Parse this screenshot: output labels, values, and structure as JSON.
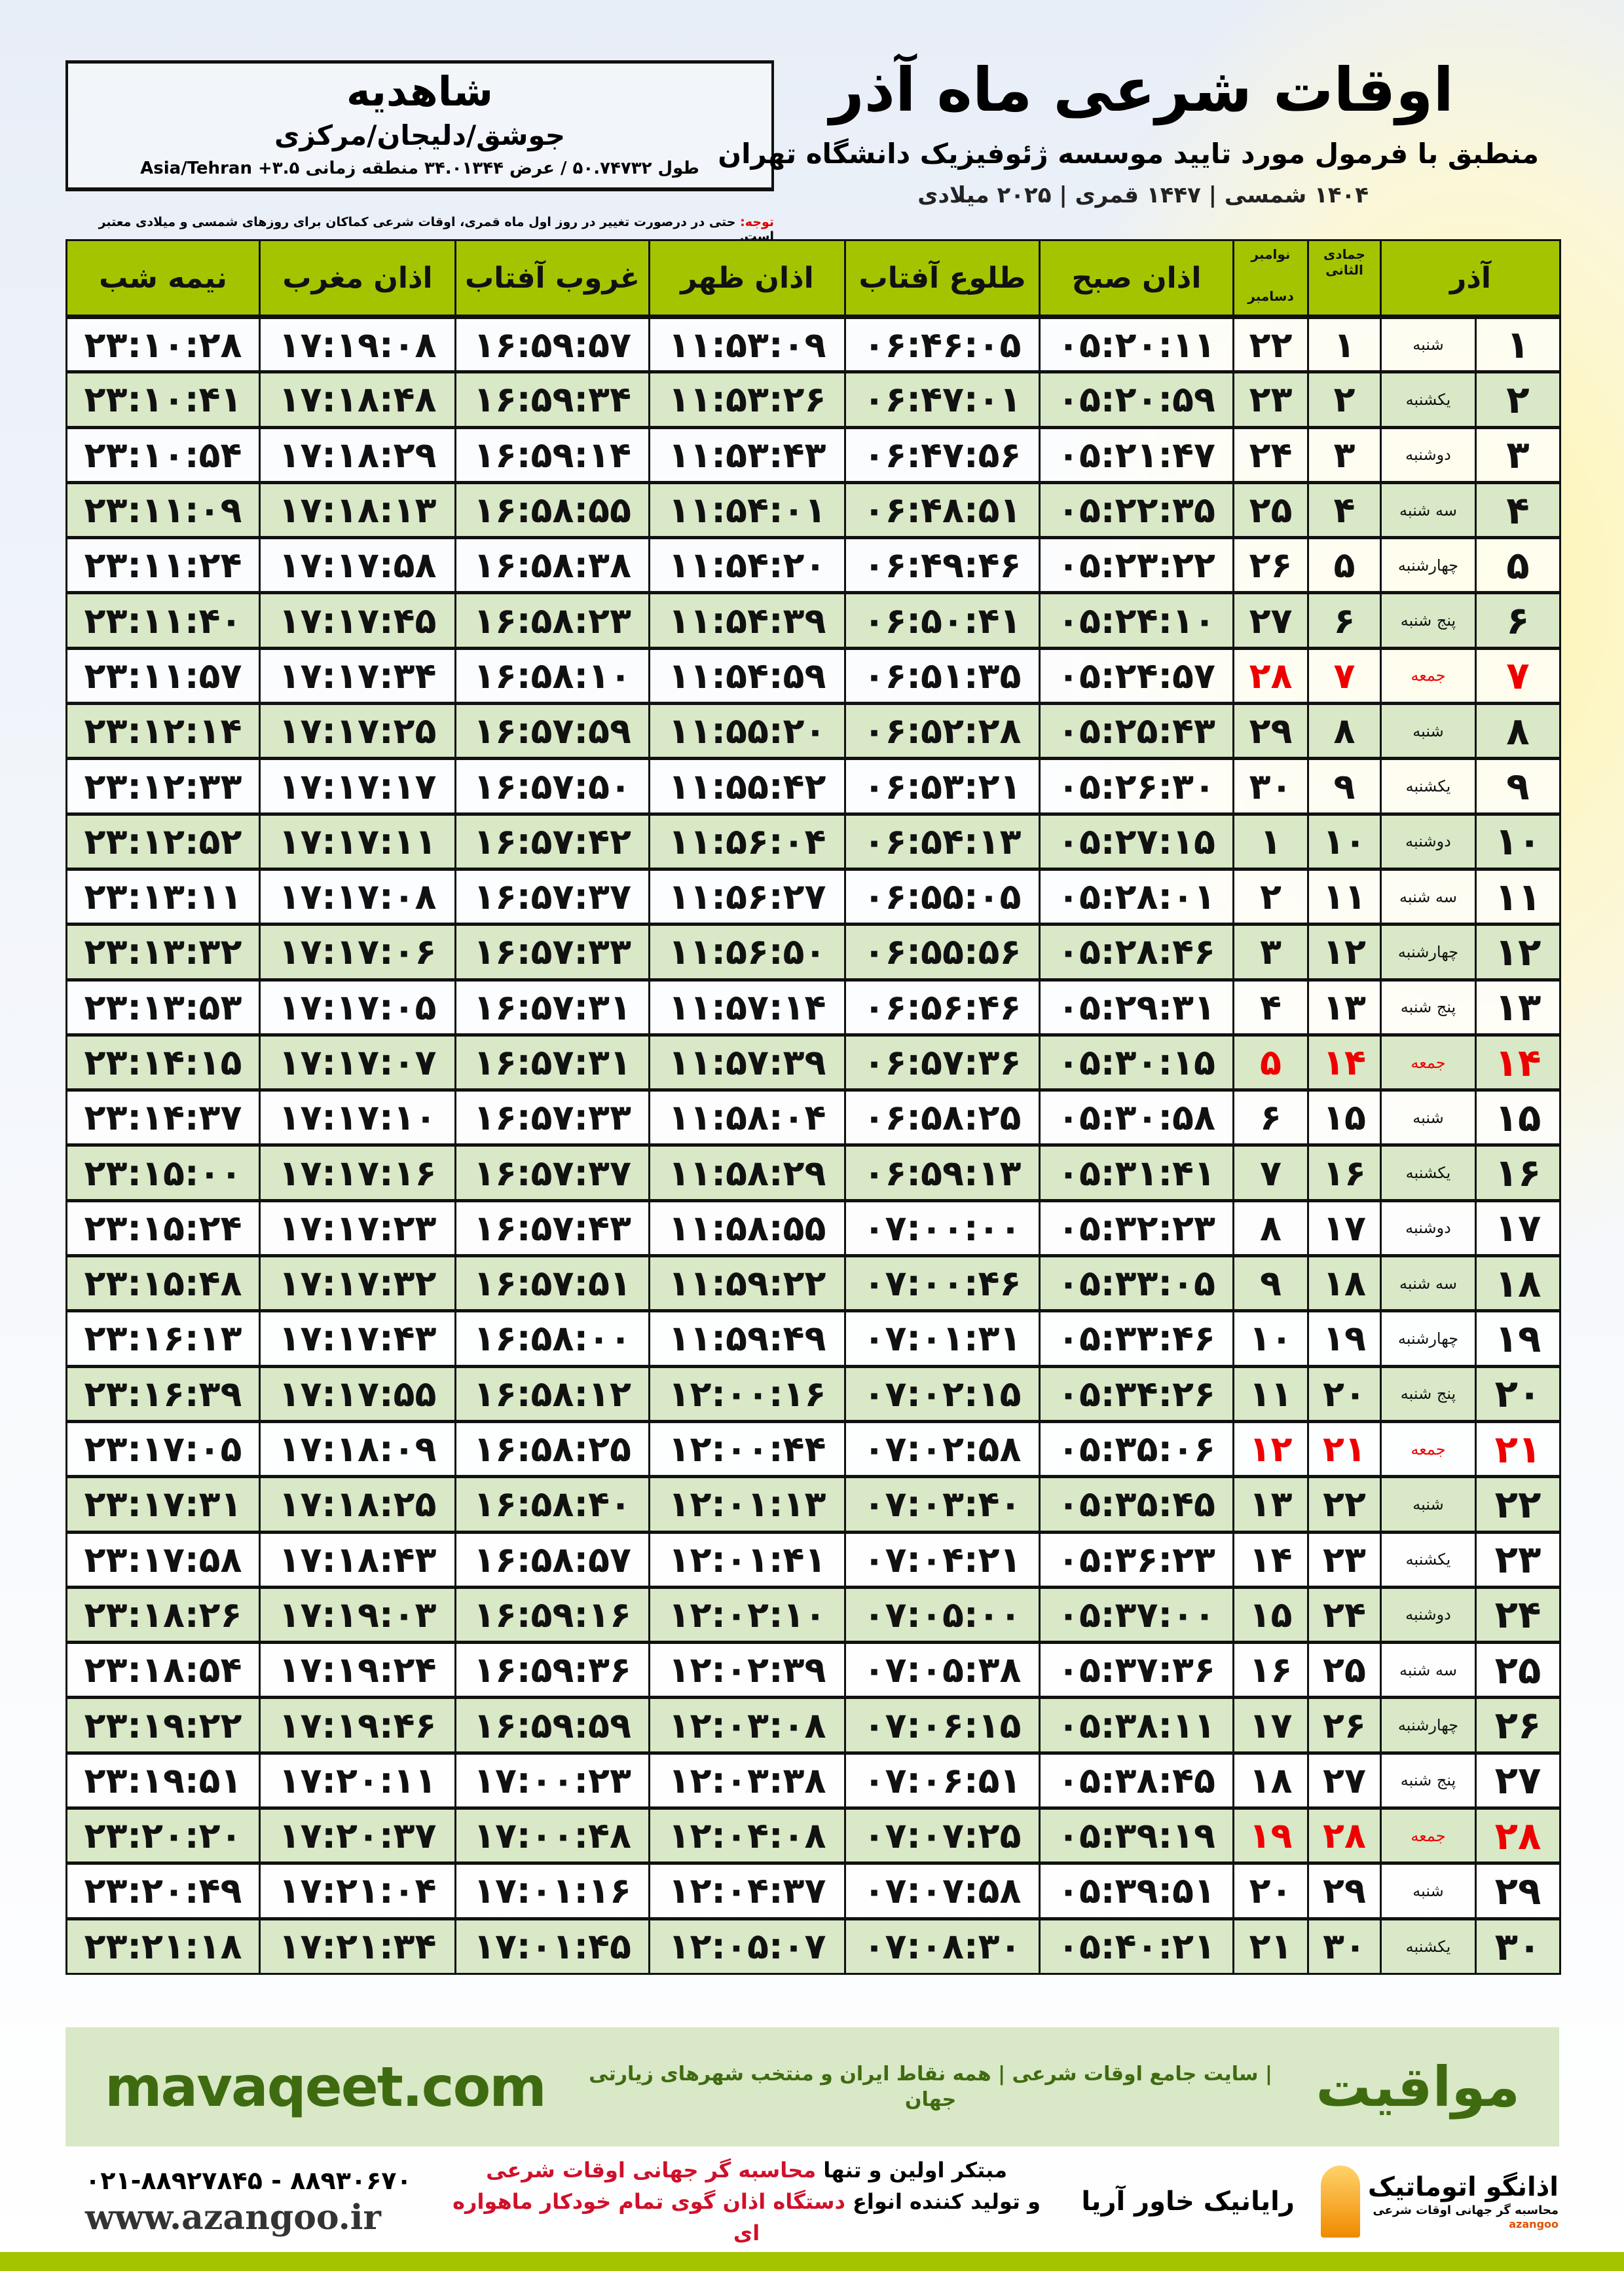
{
  "location": {
    "city": "شاهدیه",
    "region": "جوشق/دلیجان/مرکزی",
    "coords": "طول ۵۰.۷۴۷۳۲ / عرض ۳۴.۰۱۳۴۴ منطقه زمانی ۳.۵+ Asia/Tehran"
  },
  "header": {
    "title": "اوقات شرعی ماه آذر",
    "subtitle": "منطبق با فرمول مورد تایید موسسه ژئوفیزیک دانشگاه تهران",
    "years": "۱۴۰۴ شمسی | ۱۴۴۷ قمری | ۲۰۲۵ میلادی"
  },
  "note": {
    "label": "توجه:",
    "text": " حتی در درصورت تغییر در روز اول ماه قمری، اوقات شرعی کماکان برای روزهای شمسی و میلادی معتبر است."
  },
  "table": {
    "headers": {
      "azar": "آذر",
      "hijri": "جمادی الثانی",
      "greg_top": "نوامبر",
      "greg_bottom": "دسامبر",
      "fajr": "اذان صبح",
      "sunrise": "طلوع آفتاب",
      "dhuhr": "اذان ظهر",
      "sunset": "غروب آفتاب",
      "maghrib": "اذان مغرب",
      "midnight": "نیمه شب"
    },
    "holiday_color": "#e00000",
    "rows": [
      {
        "day": "۱",
        "weekday": "شنبه",
        "hijri": "۱",
        "greg": "۲۲",
        "fajr": "۰۵:۲۰:۱۱",
        "sunrise": "۰۶:۴۶:۰۵",
        "dhuhr": "۱۱:۵۳:۰۹",
        "sunset": "۱۶:۵۹:۵۷",
        "maghrib": "۱۷:۱۹:۰۸",
        "midnight": "۲۳:۱۰:۲۸",
        "holiday": false
      },
      {
        "day": "۲",
        "weekday": "یکشنبه",
        "hijri": "۲",
        "greg": "۲۳",
        "fajr": "۰۵:۲۰:۵۹",
        "sunrise": "۰۶:۴۷:۰۱",
        "dhuhr": "۱۱:۵۳:۲۶",
        "sunset": "۱۶:۵۹:۳۴",
        "maghrib": "۱۷:۱۸:۴۸",
        "midnight": "۲۳:۱۰:۴۱",
        "holiday": false
      },
      {
        "day": "۳",
        "weekday": "دوشنبه",
        "hijri": "۳",
        "greg": "۲۴",
        "fajr": "۰۵:۲۱:۴۷",
        "sunrise": "۰۶:۴۷:۵۶",
        "dhuhr": "۱۱:۵۳:۴۳",
        "sunset": "۱۶:۵۹:۱۴",
        "maghrib": "۱۷:۱۸:۲۹",
        "midnight": "۲۳:۱۰:۵۴",
        "holiday": false
      },
      {
        "day": "۴",
        "weekday": "سه شنبه",
        "hijri": "۴",
        "greg": "۲۵",
        "fajr": "۰۵:۲۲:۳۵",
        "sunrise": "۰۶:۴۸:۵۱",
        "dhuhr": "۱۱:۵۴:۰۱",
        "sunset": "۱۶:۵۸:۵۵",
        "maghrib": "۱۷:۱۸:۱۳",
        "midnight": "۲۳:۱۱:۰۹",
        "holiday": false
      },
      {
        "day": "۵",
        "weekday": "چهارشنبه",
        "hijri": "۵",
        "greg": "۲۶",
        "fajr": "۰۵:۲۳:۲۲",
        "sunrise": "۰۶:۴۹:۴۶",
        "dhuhr": "۱۱:۵۴:۲۰",
        "sunset": "۱۶:۵۸:۳۸",
        "maghrib": "۱۷:۱۷:۵۸",
        "midnight": "۲۳:۱۱:۲۴",
        "holiday": false
      },
      {
        "day": "۶",
        "weekday": "پنج شنبه",
        "hijri": "۶",
        "greg": "۲۷",
        "fajr": "۰۵:۲۴:۱۰",
        "sunrise": "۰۶:۵۰:۴۱",
        "dhuhr": "۱۱:۵۴:۳۹",
        "sunset": "۱۶:۵۸:۲۳",
        "maghrib": "۱۷:۱۷:۴۵",
        "midnight": "۲۳:۱۱:۴۰",
        "holiday": false
      },
      {
        "day": "۷",
        "weekday": "جمعه",
        "hijri": "۷",
        "greg": "۲۸",
        "fajr": "۰۵:۲۴:۵۷",
        "sunrise": "۰۶:۵۱:۳۵",
        "dhuhr": "۱۱:۵۴:۵۹",
        "sunset": "۱۶:۵۸:۱۰",
        "maghrib": "۱۷:۱۷:۳۴",
        "midnight": "۲۳:۱۱:۵۷",
        "holiday": true
      },
      {
        "day": "۸",
        "weekday": "شنبه",
        "hijri": "۸",
        "greg": "۲۹",
        "fajr": "۰۵:۲۵:۴۳",
        "sunrise": "۰۶:۵۲:۲۸",
        "dhuhr": "۱۱:۵۵:۲۰",
        "sunset": "۱۶:۵۷:۵۹",
        "maghrib": "۱۷:۱۷:۲۵",
        "midnight": "۲۳:۱۲:۱۴",
        "holiday": false
      },
      {
        "day": "۹",
        "weekday": "یکشنبه",
        "hijri": "۹",
        "greg": "۳۰",
        "fajr": "۰۵:۲۶:۳۰",
        "sunrise": "۰۶:۵۳:۲۱",
        "dhuhr": "۱۱:۵۵:۴۲",
        "sunset": "۱۶:۵۷:۵۰",
        "maghrib": "۱۷:۱۷:۱۷",
        "midnight": "۲۳:۱۲:۳۳",
        "holiday": false
      },
      {
        "day": "۱۰",
        "weekday": "دوشنبه",
        "hijri": "۱۰",
        "greg": "۱",
        "fajr": "۰۵:۲۷:۱۵",
        "sunrise": "۰۶:۵۴:۱۳",
        "dhuhr": "۱۱:۵۶:۰۴",
        "sunset": "۱۶:۵۷:۴۲",
        "maghrib": "۱۷:۱۷:۱۱",
        "midnight": "۲۳:۱۲:۵۲",
        "holiday": false
      },
      {
        "day": "۱۱",
        "weekday": "سه شنبه",
        "hijri": "۱۱",
        "greg": "۲",
        "fajr": "۰۵:۲۸:۰۱",
        "sunrise": "۰۶:۵۵:۰۵",
        "dhuhr": "۱۱:۵۶:۲۷",
        "sunset": "۱۶:۵۷:۳۷",
        "maghrib": "۱۷:۱۷:۰۸",
        "midnight": "۲۳:۱۳:۱۱",
        "holiday": false
      },
      {
        "day": "۱۲",
        "weekday": "چهارشنبه",
        "hijri": "۱۲",
        "greg": "۳",
        "fajr": "۰۵:۲۸:۴۶",
        "sunrise": "۰۶:۵۵:۵۶",
        "dhuhr": "۱۱:۵۶:۵۰",
        "sunset": "۱۶:۵۷:۳۳",
        "maghrib": "۱۷:۱۷:۰۶",
        "midnight": "۲۳:۱۳:۳۲",
        "holiday": false
      },
      {
        "day": "۱۳",
        "weekday": "پنج شنبه",
        "hijri": "۱۳",
        "greg": "۴",
        "fajr": "۰۵:۲۹:۳۱",
        "sunrise": "۰۶:۵۶:۴۶",
        "dhuhr": "۱۱:۵۷:۱۴",
        "sunset": "۱۶:۵۷:۳۱",
        "maghrib": "۱۷:۱۷:۰۵",
        "midnight": "۲۳:۱۳:۵۳",
        "holiday": false
      },
      {
        "day": "۱۴",
        "weekday": "جمعه",
        "hijri": "۱۴",
        "greg": "۵",
        "fajr": "۰۵:۳۰:۱۵",
        "sunrise": "۰۶:۵۷:۳۶",
        "dhuhr": "۱۱:۵۷:۳۹",
        "sunset": "۱۶:۵۷:۳۱",
        "maghrib": "۱۷:۱۷:۰۷",
        "midnight": "۲۳:۱۴:۱۵",
        "holiday": true
      },
      {
        "day": "۱۵",
        "weekday": "شنبه",
        "hijri": "۱۵",
        "greg": "۶",
        "fajr": "۰۵:۳۰:۵۸",
        "sunrise": "۰۶:۵۸:۲۵",
        "dhuhr": "۱۱:۵۸:۰۴",
        "sunset": "۱۶:۵۷:۳۳",
        "maghrib": "۱۷:۱۷:۱۰",
        "midnight": "۲۳:۱۴:۳۷",
        "holiday": false
      },
      {
        "day": "۱۶",
        "weekday": "یکشنبه",
        "hijri": "۱۶",
        "greg": "۷",
        "fajr": "۰۵:۳۱:۴۱",
        "sunrise": "۰۶:۵۹:۱۳",
        "dhuhr": "۱۱:۵۸:۲۹",
        "sunset": "۱۶:۵۷:۳۷",
        "maghrib": "۱۷:۱۷:۱۶",
        "midnight": "۲۳:۱۵:۰۰",
        "holiday": false
      },
      {
        "day": "۱۷",
        "weekday": "دوشنبه",
        "hijri": "۱۷",
        "greg": "۸",
        "fajr": "۰۵:۳۲:۲۳",
        "sunrise": "۰۷:۰۰:۰۰",
        "dhuhr": "۱۱:۵۸:۵۵",
        "sunset": "۱۶:۵۷:۴۳",
        "maghrib": "۱۷:۱۷:۲۳",
        "midnight": "۲۳:۱۵:۲۴",
        "holiday": false
      },
      {
        "day": "۱۸",
        "weekday": "سه شنبه",
        "hijri": "۱۸",
        "greg": "۹",
        "fajr": "۰۵:۳۳:۰۵",
        "sunrise": "۰۷:۰۰:۴۶",
        "dhuhr": "۱۱:۵۹:۲۲",
        "sunset": "۱۶:۵۷:۵۱",
        "maghrib": "۱۷:۱۷:۳۲",
        "midnight": "۲۳:۱۵:۴۸",
        "holiday": false
      },
      {
        "day": "۱۹",
        "weekday": "چهارشنبه",
        "hijri": "۱۹",
        "greg": "۱۰",
        "fajr": "۰۵:۳۳:۴۶",
        "sunrise": "۰۷:۰۱:۳۱",
        "dhuhr": "۱۱:۵۹:۴۹",
        "sunset": "۱۶:۵۸:۰۰",
        "maghrib": "۱۷:۱۷:۴۳",
        "midnight": "۲۳:۱۶:۱۳",
        "holiday": false
      },
      {
        "day": "۲۰",
        "weekday": "پنج شنبه",
        "hijri": "۲۰",
        "greg": "۱۱",
        "fajr": "۰۵:۳۴:۲۶",
        "sunrise": "۰۷:۰۲:۱۵",
        "dhuhr": "۱۲:۰۰:۱۶",
        "sunset": "۱۶:۵۸:۱۲",
        "maghrib": "۱۷:۱۷:۵۵",
        "midnight": "۲۳:۱۶:۳۹",
        "holiday": false
      },
      {
        "day": "۲۱",
        "weekday": "جمعه",
        "hijri": "۲۱",
        "greg": "۱۲",
        "fajr": "۰۵:۳۵:۰۶",
        "sunrise": "۰۷:۰۲:۵۸",
        "dhuhr": "۱۲:۰۰:۴۴",
        "sunset": "۱۶:۵۸:۲۵",
        "maghrib": "۱۷:۱۸:۰۹",
        "midnight": "۲۳:۱۷:۰۵",
        "holiday": true
      },
      {
        "day": "۲۲",
        "weekday": "شنبه",
        "hijri": "۲۲",
        "greg": "۱۳",
        "fajr": "۰۵:۳۵:۴۵",
        "sunrise": "۰۷:۰۳:۴۰",
        "dhuhr": "۱۲:۰۱:۱۳",
        "sunset": "۱۶:۵۸:۴۰",
        "maghrib": "۱۷:۱۸:۲۵",
        "midnight": "۲۳:۱۷:۳۱",
        "holiday": false
      },
      {
        "day": "۲۳",
        "weekday": "یکشنبه",
        "hijri": "۲۳",
        "greg": "۱۴",
        "fajr": "۰۵:۳۶:۲۳",
        "sunrise": "۰۷:۰۴:۲۱",
        "dhuhr": "۱۲:۰۱:۴۱",
        "sunset": "۱۶:۵۸:۵۷",
        "maghrib": "۱۷:۱۸:۴۳",
        "midnight": "۲۳:۱۷:۵۸",
        "holiday": false
      },
      {
        "day": "۲۴",
        "weekday": "دوشنبه",
        "hijri": "۲۴",
        "greg": "۱۵",
        "fajr": "۰۵:۳۷:۰۰",
        "sunrise": "۰۷:۰۵:۰۰",
        "dhuhr": "۱۲:۰۲:۱۰",
        "sunset": "۱۶:۵۹:۱۶",
        "maghrib": "۱۷:۱۹:۰۳",
        "midnight": "۲۳:۱۸:۲۶",
        "holiday": false
      },
      {
        "day": "۲۵",
        "weekday": "سه شنبه",
        "hijri": "۲۵",
        "greg": "۱۶",
        "fajr": "۰۵:۳۷:۳۶",
        "sunrise": "۰۷:۰۵:۳۸",
        "dhuhr": "۱۲:۰۲:۳۹",
        "sunset": "۱۶:۵۹:۳۶",
        "maghrib": "۱۷:۱۹:۲۴",
        "midnight": "۲۳:۱۸:۵۴",
        "holiday": false
      },
      {
        "day": "۲۶",
        "weekday": "چهارشنبه",
        "hijri": "۲۶",
        "greg": "۱۷",
        "fajr": "۰۵:۳۸:۱۱",
        "sunrise": "۰۷:۰۶:۱۵",
        "dhuhr": "۱۲:۰۳:۰۸",
        "sunset": "۱۶:۵۹:۵۹",
        "maghrib": "۱۷:۱۹:۴۶",
        "midnight": "۲۳:۱۹:۲۲",
        "holiday": false
      },
      {
        "day": "۲۷",
        "weekday": "پنج شنبه",
        "hijri": "۲۷",
        "greg": "۱۸",
        "fajr": "۰۵:۳۸:۴۵",
        "sunrise": "۰۷:۰۶:۵۱",
        "dhuhr": "۱۲:۰۳:۳۸",
        "sunset": "۱۷:۰۰:۲۳",
        "maghrib": "۱۷:۲۰:۱۱",
        "midnight": "۲۳:۱۹:۵۱",
        "holiday": false
      },
      {
        "day": "۲۸",
        "weekday": "جمعه",
        "hijri": "۲۸",
        "greg": "۱۹",
        "fajr": "۰۵:۳۹:۱۹",
        "sunrise": "۰۷:۰۷:۲۵",
        "dhuhr": "۱۲:۰۴:۰۸",
        "sunset": "۱۷:۰۰:۴۸",
        "maghrib": "۱۷:۲۰:۳۷",
        "midnight": "۲۳:۲۰:۲۰",
        "holiday": true
      },
      {
        "day": "۲۹",
        "weekday": "شنبه",
        "hijri": "۲۹",
        "greg": "۲۰",
        "fajr": "۰۵:۳۹:۵۱",
        "sunrise": "۰۷:۰۷:۵۸",
        "dhuhr": "۱۲:۰۴:۳۷",
        "sunset": "۱۷:۰۱:۱۶",
        "maghrib": "۱۷:۲۱:۰۴",
        "midnight": "۲۳:۲۰:۴۹",
        "holiday": false
      },
      {
        "day": "۳۰",
        "weekday": "یکشنبه",
        "hijri": "۳۰",
        "greg": "۲۱",
        "fajr": "۰۵:۴۰:۲۱",
        "sunrise": "۰۷:۰۸:۳۰",
        "dhuhr": "۱۲:۰۵:۰۷",
        "sunset": "۱۷:۰۱:۴۵",
        "maghrib": "۱۷:۲۱:۳۴",
        "midnight": "۲۳:۲۱:۱۸",
        "holiday": false
      }
    ]
  },
  "footer": {
    "brand": "مواقیت",
    "tagline": "| سایت جامع اوقات شرعی | همه نقاط ایران و منتخب شهرهای زیارتی جهان",
    "site": "mavaqeet.com",
    "promo_line1_a": "مبتکر اولین و تنها ",
    "promo_line1_b": "محاسبه گر جهانی اوقات شرعی",
    "promo_line2_a": "و تولید کننده انواع ",
    "promo_line2_b": "دستگاه اذان گوی تمام خودکار ماهواره ای",
    "phone": "۰۲۱-۸۸۹۲۷۸۴۵ - ۸۸۹۳۰۶۷۰",
    "web": "www.azangoo.ir",
    "logo_rayanik": "رایانیک خاور آریا",
    "logo_azangoo": "اذانگو اتوماتیک",
    "logo_azangoo_sub": "محاسبه گر جهانی اوقات شرعی",
    "logo_azangoo_en": "azangoo",
    "brand_color": "#3f6b10",
    "accent_color": "#a5c400"
  }
}
